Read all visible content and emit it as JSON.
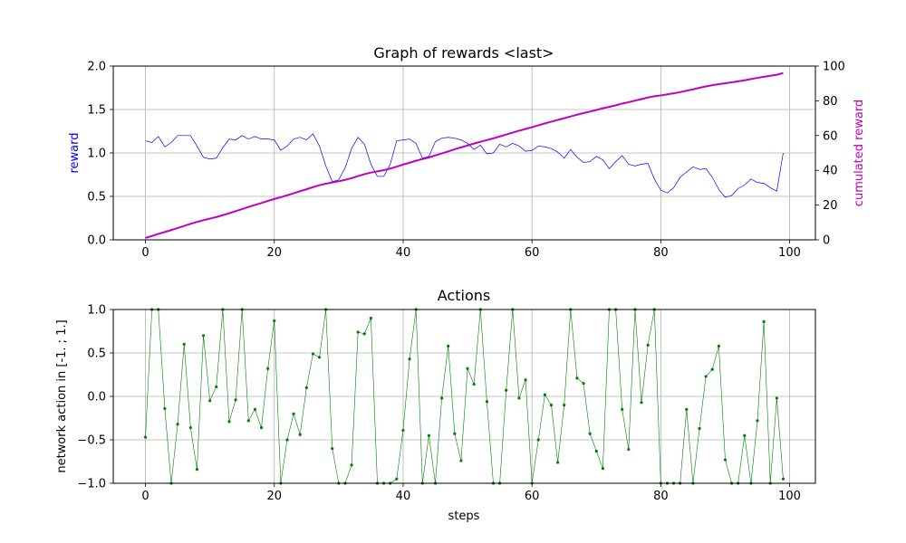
{
  "chart_data": [
    {
      "type": "line",
      "title": "Graph of rewards <last>",
      "xlabel": "",
      "ylabel": "reward",
      "y2label": "cumulated reward",
      "xlim": [
        -5,
        104
      ],
      "ylim": [
        0,
        2.0
      ],
      "y2lim": [
        0,
        100
      ],
      "x_ticks": [
        0,
        20,
        40,
        60,
        80,
        100
      ],
      "y_ticks": [
        "0.0",
        "0.5",
        "1.0",
        "1.5",
        "2.0"
      ],
      "y2_ticks": [
        0,
        20,
        40,
        60,
        80,
        100
      ],
      "grid": true,
      "colors": {
        "reward": "#0000ff",
        "cumulated": "#bf00bf",
        "ylabel": "#0000ff",
        "y2label": "#bf00bf"
      },
      "series": [
        {
          "axis": "left",
          "values": [
            1.14,
            1.12,
            1.19,
            1.07,
            1.12,
            1.2,
            1.2,
            1.2,
            1.08,
            0.95,
            0.93,
            0.94,
            1.06,
            1.16,
            1.15,
            1.2,
            1.16,
            1.19,
            1.16,
            1.16,
            1.15,
            1.03,
            1.08,
            1.16,
            1.18,
            1.15,
            1.22,
            1.08,
            0.85,
            0.67,
            0.69,
            0.83,
            1.05,
            1.18,
            1.1,
            0.87,
            0.73,
            0.73,
            0.87,
            1.14,
            1.15,
            1.16,
            1.11,
            0.94,
            0.96,
            1.13,
            1.17,
            1.18,
            1.17,
            1.15,
            1.11,
            1.04,
            1.09,
            0.99,
            1.0,
            1.1,
            1.07,
            1.11,
            1.08,
            1.02,
            1.03,
            1.08,
            1.07,
            1.05,
            1.01,
            0.94,
            1.04,
            0.95,
            0.89,
            0.9,
            0.96,
            0.92,
            0.82,
            0.9,
            0.97,
            0.87,
            0.85,
            0.87,
            0.88,
            0.7,
            0.57,
            0.54,
            0.6,
            0.72,
            0.78,
            0.84,
            0.81,
            0.82,
            0.72,
            0.58,
            0.49,
            0.51,
            0.59,
            0.63,
            0.7,
            0.66,
            0.65,
            0.6,
            0.56,
            1.0
          ]
        },
        {
          "axis": "right",
          "values": [
            1.1,
            2.2,
            3.4,
            4.5,
            5.6,
            6.8,
            8.0,
            9.2,
            10.3,
            11.3,
            12.2,
            13.1,
            14.2,
            15.3,
            16.5,
            17.7,
            18.9,
            20.1,
            21.2,
            22.4,
            23.5,
            24.5,
            25.6,
            26.8,
            28.0,
            29.1,
            30.3,
            31.4,
            32.3,
            33.0,
            33.7,
            34.5,
            35.5,
            36.7,
            37.8,
            38.7,
            39.4,
            40.1,
            41.0,
            42.1,
            43.3,
            44.4,
            45.5,
            46.5,
            47.4,
            48.6,
            49.7,
            50.9,
            52.1,
            53.2,
            54.3,
            55.4,
            56.4,
            57.4,
            58.4,
            59.5,
            60.6,
            61.7,
            62.8,
            63.8,
            64.8,
            65.9,
            67.0,
            68.0,
            69.0,
            70.0,
            71.0,
            72.0,
            72.9,
            73.8,
            74.7,
            75.7,
            76.5,
            77.4,
            78.4,
            79.2,
            80.1,
            81.0,
            81.9,
            82.6,
            83.1,
            83.7,
            84.3,
            85.0,
            85.8,
            86.6,
            87.5,
            88.3,
            89.0,
            89.6,
            90.1,
            90.6,
            91.2,
            91.8,
            92.5,
            93.2,
            93.8,
            94.4,
            95.0,
            96.0
          ]
        }
      ]
    },
    {
      "type": "line",
      "title": "Actions",
      "xlabel": "steps",
      "ylabel": "network action in [-1. ; 1.]",
      "xlim": [
        -5,
        104
      ],
      "ylim": [
        -1.0,
        1.0
      ],
      "x_ticks": [
        0,
        20,
        40,
        60,
        80,
        100
      ],
      "y_ticks": [
        "−1.0",
        "−0.5",
        "0.0",
        "0.5",
        "1.0"
      ],
      "grid": true,
      "colors": {
        "actions": "#008000"
      },
      "series": [
        {
          "values": [
            -0.47,
            1.0,
            1.0,
            -0.14,
            -1.0,
            -0.32,
            0.6,
            -0.36,
            -0.84,
            0.7,
            -0.05,
            0.11,
            1.0,
            -0.29,
            -0.04,
            1.0,
            -0.28,
            -0.15,
            -0.36,
            0.32,
            0.87,
            -1.0,
            -0.5,
            -0.2,
            -0.44,
            0.1,
            0.49,
            0.45,
            1.0,
            -0.6,
            -1.0,
            -1.0,
            -0.79,
            0.74,
            0.72,
            0.9,
            -1.0,
            -1.0,
            -1.0,
            -0.95,
            -0.39,
            0.43,
            1.0,
            -1.0,
            -0.45,
            -1.0,
            -0.02,
            0.58,
            -0.43,
            -0.74,
            0.32,
            0.14,
            1.0,
            -0.06,
            -1.0,
            -1.0,
            0.07,
            1.0,
            -0.02,
            0.19,
            -1.0,
            -0.5,
            0.02,
            -0.1,
            -0.76,
            -0.1,
            1.0,
            0.21,
            0.15,
            -0.43,
            -0.63,
            -0.83,
            1.0,
            1.0,
            -0.15,
            -0.61,
            1.0,
            -0.07,
            0.59,
            1.0,
            -1.0,
            -1.0,
            -1.0,
            -1.0,
            -0.15,
            -1.0,
            -0.37,
            0.23,
            0.31,
            0.58,
            -0.73,
            -1.0,
            -1.0,
            -0.45,
            -1.0,
            -0.28,
            0.86,
            -1.0,
            -0.02,
            -0.95
          ]
        }
      ]
    }
  ]
}
